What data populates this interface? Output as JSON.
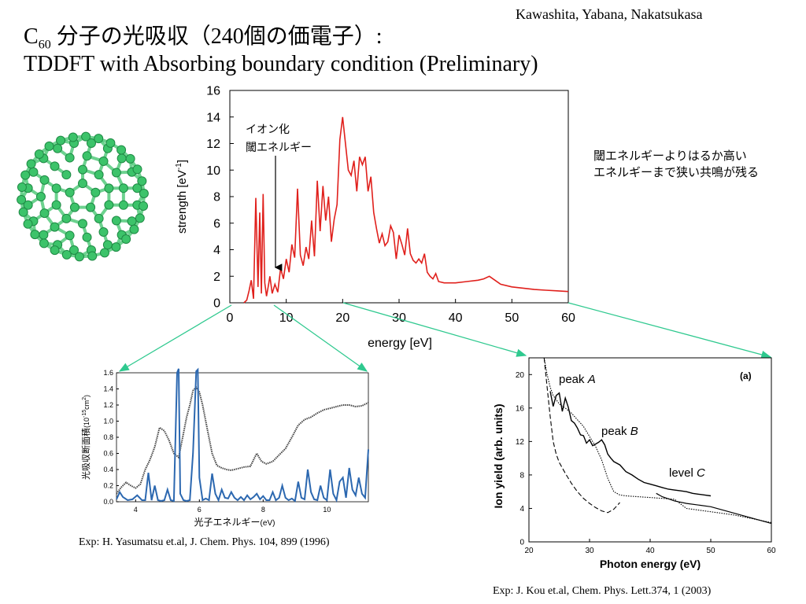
{
  "header": {
    "authors": "Kawashita, Yabana, Nakatsukasa",
    "title_c": "C",
    "title_sub": "60",
    "title_rest": " 分子の光吸収（240個の価電子）:",
    "subtitle": "TDDFT with Absorbing boundary condition (Preliminary)"
  },
  "annotations": {
    "ionization_line1": "イオン化",
    "ionization_line2": "閾エネルギー",
    "right_note_line1": "閾エネルギーよりはるか高い",
    "right_note_line2": "エネルギーまで狭い共鳴が残る"
  },
  "references": {
    "left": "Exp: H. Yasumatsu et.al, J. Chem. Phys. 104, 899 (1996)",
    "right": "Exp: J. Kou et.al, Chem. Phys. Lett.374, 1 (2003)"
  },
  "colors": {
    "tddft": "#e0201c",
    "calc_blue": "#2c68b0",
    "exp_gray": "#444444",
    "arrow": "#2fc98f",
    "molecule": "#3cc36a"
  },
  "chart_data": [
    {
      "type": "line",
      "title": "",
      "xlabel": "energy [eV]",
      "ylabel": "strength [eV",
      "ylabel_sup": "-1",
      "ylabel_end": "]",
      "xlim": [
        0,
        60
      ],
      "ylim": [
        0,
        16
      ],
      "xticks": [
        "0",
        "10",
        "20",
        "30",
        "40",
        "50",
        "60"
      ],
      "yticks": [
        "0",
        "2",
        "4",
        "6",
        "8",
        "10",
        "12",
        "14",
        "16"
      ],
      "series": [
        {
          "x": [
            2.5,
            3,
            3.4,
            3.8,
            4.2,
            4.6,
            5.0,
            5.3,
            5.6,
            5.9,
            6.2,
            6.5,
            6.8,
            7.1,
            7.5,
            8,
            8.5,
            9,
            9.5,
            10,
            10.5,
            11,
            11.5,
            12,
            12.5,
            13,
            13.5,
            14,
            14.5,
            15,
            15.5,
            16,
            16.5,
            17,
            17.5,
            18,
            18.5,
            19,
            19.5,
            20,
            20.5,
            21,
            21.5,
            22,
            22.5,
            23,
            23.5,
            24,
            24.5,
            25,
            25.5,
            26,
            26.5,
            27,
            27.5,
            28,
            28.5,
            29,
            29.5,
            30,
            30.5,
            31,
            31.5,
            32,
            32.5,
            33,
            33.5,
            34,
            34.5,
            35,
            35.5,
            36,
            36.5,
            37,
            38,
            40,
            42,
            44,
            45,
            46,
            47,
            48,
            50,
            52,
            54,
            56,
            58,
            60
          ],
          "y": [
            0,
            0.2,
            0.9,
            1.7,
            0.3,
            7.9,
            1.2,
            6.8,
            0.7,
            8.2,
            1.5,
            0.5,
            1.2,
            2.0,
            0.7,
            1.4,
            0.8,
            2.6,
            1.8,
            3.3,
            2.3,
            4.4,
            3.4,
            8.6,
            3.6,
            2.8,
            4.2,
            3.3,
            6.2,
            3.5,
            9.2,
            5.4,
            8.8,
            6.2,
            8.0,
            4.6,
            6.3,
            7.4,
            12.3,
            14.0,
            12.0,
            10.0,
            9.6,
            10.7,
            8.4,
            11.0,
            10.4,
            11.0,
            8.4,
            9.5,
            6.8,
            5.6,
            4.5,
            5.2,
            4.3,
            4.6,
            5.8,
            5.3,
            3.3,
            5.1,
            4.4,
            3.6,
            5.6,
            3.7,
            3.2,
            3.0,
            3.3,
            3.0,
            3.7,
            2.3,
            2.0,
            1.8,
            2.2,
            1.6,
            1.5,
            1.5,
            1.6,
            1.7,
            1.8,
            2.0,
            1.7,
            1.4,
            1.2,
            1.1,
            1.0,
            0.95,
            0.9,
            0.85
          ]
        }
      ]
    },
    {
      "type": "line",
      "title": "",
      "xlabel": "光子エネルギー",
      "xlabel_unit": "(eV)",
      "ylabel": "光吸収断面積",
      "ylabel_unit": "(10",
      "ylabel_unit_sup": "-15",
      "ylabel_unit_end": "cm",
      "ylabel_unit_sup2": "2",
      "ylabel_close": ")",
      "xlim": [
        3.4,
        11.3
      ],
      "ylim": [
        0,
        1.6
      ],
      "xticks": [
        "4",
        "6",
        "8",
        "10"
      ],
      "yticks": [
        "0.0",
        "0.2",
        "0.4",
        "0.6",
        "0.8",
        "1.0",
        "1.2",
        "1.4",
        "1.6"
      ],
      "series": [
        {
          "x": [
            3.4,
            3.55,
            3.7,
            3.85,
            4.0,
            4.15,
            4.3,
            4.45,
            4.6,
            4.75,
            4.9,
            5.05,
            5.2,
            5.35,
            5.5,
            5.6,
            5.7,
            5.8,
            5.9,
            6.0,
            6.1,
            6.25,
            6.4,
            6.55,
            6.7,
            6.85,
            7.0,
            7.2,
            7.4,
            7.6,
            7.8,
            7.95,
            8.1,
            8.3,
            8.5,
            8.7,
            8.9,
            9.1,
            9.3,
            9.5,
            9.7,
            9.9,
            10.1,
            10.3,
            10.5,
            10.7,
            10.9,
            11.1,
            11.3
          ],
          "y": [
            0.1,
            0.18,
            0.24,
            0.2,
            0.17,
            0.22,
            0.4,
            0.52,
            0.68,
            0.92,
            0.88,
            0.76,
            0.6,
            0.55,
            0.85,
            1.05,
            1.2,
            1.38,
            1.42,
            1.36,
            1.2,
            0.9,
            0.6,
            0.45,
            0.42,
            0.4,
            0.39,
            0.41,
            0.43,
            0.44,
            0.6,
            0.5,
            0.47,
            0.5,
            0.58,
            0.66,
            0.8,
            0.95,
            1.02,
            1.05,
            1.1,
            1.14,
            1.16,
            1.18,
            1.2,
            1.2,
            1.18,
            1.19,
            1.23
          ]
        },
        {
          "x": [
            3.4,
            3.5,
            3.6,
            3.75,
            3.9,
            4.05,
            4.2,
            4.3,
            4.4,
            4.5,
            4.6,
            4.7,
            4.8,
            4.9,
            5.0,
            5.1,
            5.2,
            5.3,
            5.35,
            5.4,
            5.5,
            5.6,
            5.7,
            5.8,
            5.9,
            5.95,
            6.0,
            6.1,
            6.2,
            6.3,
            6.4,
            6.5,
            6.6,
            6.7,
            6.8,
            6.9,
            7.0,
            7.1,
            7.2,
            7.3,
            7.4,
            7.5,
            7.6,
            7.7,
            7.8,
            7.9,
            8.0,
            8.1,
            8.2,
            8.3,
            8.4,
            8.5,
            8.6,
            8.7,
            8.8,
            8.9,
            9.0,
            9.1,
            9.2,
            9.3,
            9.4,
            9.5,
            9.6,
            9.7,
            9.8,
            9.9,
            10.0,
            10.1,
            10.2,
            10.3,
            10.4,
            10.5,
            10.6,
            10.7,
            10.8,
            10.9,
            11.0,
            11.1,
            11.2,
            11.3
          ],
          "y": [
            0.03,
            0.12,
            0.06,
            0.02,
            0.03,
            0.08,
            0.02,
            0.02,
            0.36,
            0.02,
            0.2,
            0.02,
            0.01,
            0.02,
            0.15,
            0.02,
            0.01,
            1.6,
            1.65,
            0.1,
            0.02,
            0.01,
            0.02,
            0.6,
            1.62,
            1.64,
            0.3,
            0.02,
            0.04,
            0.02,
            0.35,
            0.1,
            0.02,
            0.15,
            0.05,
            0.04,
            0.12,
            0.05,
            0.02,
            0.06,
            0.02,
            0.08,
            0.03,
            0.06,
            0.1,
            0.03,
            0.07,
            0.02,
            0.02,
            0.12,
            0.02,
            0.05,
            0.2,
            0.05,
            0.02,
            0.04,
            0.01,
            0.25,
            0.05,
            0.03,
            0.4,
            0.12,
            0.03,
            0.02,
            0.2,
            0.05,
            0.02,
            0.4,
            0.1,
            0.02,
            0.25,
            0.3,
            0.05,
            0.42,
            0.15,
            0.08,
            0.3,
            0.1,
            0.05,
            0.65
          ]
        }
      ]
    },
    {
      "type": "line",
      "title": "",
      "panel_label": "(a)",
      "xlabel": "Photon energy (eV)",
      "ylabel": "Ion yield (arb. units)",
      "xlim": [
        20,
        60
      ],
      "ylim": [
        0,
        22
      ],
      "xticks": [
        "20",
        "30",
        "40",
        "50",
        "60"
      ],
      "yticks": [
        "0",
        "4",
        "8",
        "12",
        "16",
        "20"
      ],
      "labels": {
        "peak_a": "peak ",
        "peak_a_letter": "A",
        "peak_b": "peak ",
        "peak_b_letter": "B",
        "level_c": "level ",
        "level_c_letter": "C"
      },
      "series": [
        {
          "x": [
            23.5,
            24,
            24.5,
            25,
            25.5,
            26,
            26.5,
            27,
            27.5,
            28,
            28.5,
            29,
            29.5,
            30,
            30.5,
            31,
            31.5,
            32,
            32.5,
            33,
            33.5,
            34,
            35,
            36,
            37,
            38,
            39,
            40,
            41,
            42,
            43,
            44,
            45,
            46,
            47,
            48,
            49,
            50
          ],
          "y": [
            18,
            16.2,
            17.5,
            17.8,
            15.6,
            17.2,
            16.1,
            14.5,
            14.2,
            13.6,
            12.8,
            12.7,
            11.8,
            12.2,
            11.5,
            11.7,
            11.9,
            12.2,
            11.6,
            10.5,
            10.0,
            9.6,
            9.2,
            8.4,
            8.0,
            7.5,
            7.1,
            6.9,
            6.7,
            6.5,
            6.3,
            6.2,
            6.1,
            6.0,
            5.8,
            5.7,
            5.6,
            5.5
          ]
        },
        {
          "x": [
            22.5,
            23,
            23.5,
            24,
            24.5,
            25,
            25.5,
            26,
            27,
            28,
            29,
            30,
            31,
            32,
            33,
            34,
            35,
            36,
            38,
            40,
            42,
            44,
            46,
            48,
            50,
            52,
            54,
            56,
            58,
            60
          ],
          "y": [
            22,
            20,
            18.5,
            17.5,
            17,
            16.5,
            16.2,
            16.0,
            15.4,
            14.6,
            13.8,
            12.6,
            11.4,
            9.8,
            7.6,
            6.0,
            5.6,
            5.5,
            5.4,
            5.3,
            5.2,
            5.1,
            4.0,
            3.8,
            3.6,
            3.4,
            3.2,
            2.9,
            2.6,
            2.3
          ]
        },
        {
          "x": [
            22.5,
            23,
            23.5,
            24,
            24.5,
            25,
            26,
            27,
            28,
            29,
            30,
            31,
            32,
            33,
            34,
            34.5,
            35
          ],
          "y": [
            22,
            18.5,
            15,
            12,
            10.5,
            9.5,
            8.2,
            7.0,
            6.0,
            5.2,
            4.6,
            4.1,
            3.7,
            3.5,
            3.9,
            4.3,
            4.7
          ]
        },
        {
          "x": [
            41,
            42,
            44,
            46,
            48,
            50,
            52,
            54,
            56,
            58,
            60
          ],
          "y": [
            5.8,
            5.4,
            4.9,
            4.6,
            4.4,
            4.2,
            3.8,
            3.4,
            3.0,
            2.6,
            2.2
          ]
        }
      ]
    }
  ]
}
